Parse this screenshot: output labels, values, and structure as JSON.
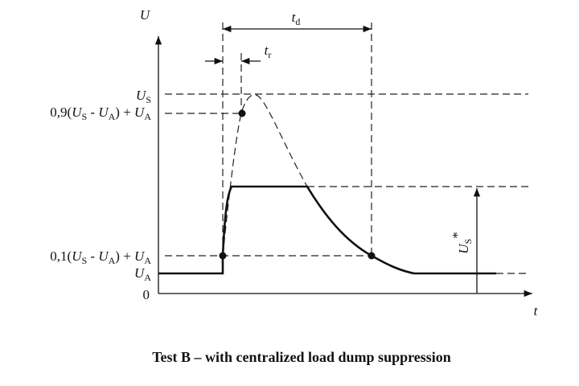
{
  "axes": {
    "y_label": "U",
    "x_label": "t"
  },
  "labels": {
    "td": [
      "t",
      "d"
    ],
    "tr": [
      "t",
      "r"
    ],
    "us": [
      "U",
      "S"
    ],
    "level_90": [
      "0,9(",
      "U",
      "S",
      " - ",
      "U",
      "A",
      ") + ",
      "U",
      "A"
    ],
    "level_10": [
      "0,1(",
      "U",
      "S",
      " - ",
      "U",
      "A",
      ") + ",
      "U",
      "A"
    ],
    "ua": [
      "U",
      "A"
    ],
    "zero": "0",
    "us_star": [
      "U",
      "S",
      "*"
    ]
  },
  "caption": "Test B – with centralized load dump suppression"
}
